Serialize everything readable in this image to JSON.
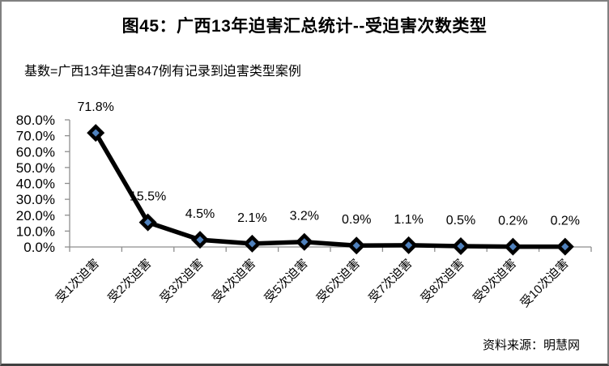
{
  "header": {
    "title": "图45：广西13年迫害汇总统计--受迫害次数类型",
    "subtitle": "基数=广西13年迫害847例有记录到迫害类型案例"
  },
  "footer": {
    "source": "资料来源：明慧网"
  },
  "chart_data": {
    "type": "line",
    "title": "图45：广西13年迫害汇总统计--受迫害次数类型",
    "subtitle_note": "基数=广西13年迫害847例有记录到迫害类型案例",
    "categories": [
      "受1次迫害",
      "受2次迫害",
      "受3次迫害",
      "受4次迫害",
      "受5次迫害",
      "受6次迫害",
      "受7次迫害",
      "受8次迫害",
      "受9次迫害",
      "受10次迫害"
    ],
    "values": [
      71.8,
      15.5,
      4.5,
      2.1,
      3.2,
      0.9,
      1.1,
      0.5,
      0.2,
      0.2
    ],
    "data_labels": [
      "71.8%",
      "15.5%",
      "4.5%",
      "2.1%",
      "3.2%",
      "0.9%",
      "1.1%",
      "0.5%",
      "0.2%",
      "0.2%"
    ],
    "y_tick_labels": [
      "0.0%",
      "10.0%",
      "20.0%",
      "30.0%",
      "40.0%",
      "50.0%",
      "60.0%",
      "70.0%",
      "80.0%"
    ],
    "y_tick_values": [
      0,
      10,
      20,
      30,
      40,
      50,
      60,
      70,
      80
    ],
    "ylim": [
      0,
      80
    ],
    "xlabel": "",
    "ylabel": "",
    "grid": false,
    "legend": "none",
    "marker": "diamond",
    "x_label_rotation": -45,
    "colors": {
      "line": "#000000",
      "marker_fill": "#4f81bd",
      "marker_border": "#000000",
      "axis": "#8e8e8e",
      "text": "#000000"
    },
    "source": "资料来源：明慧网"
  }
}
